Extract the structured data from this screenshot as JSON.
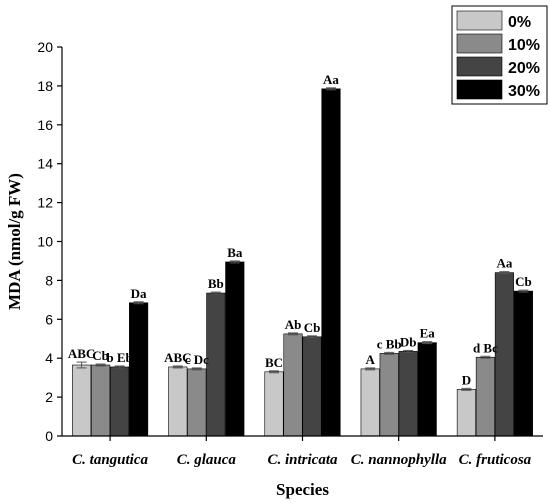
{
  "chart_data": {
    "type": "bar",
    "xlabel": "Species",
    "ylabel": "MDA (nmol/g FW)",
    "ylim": [
      0,
      20
    ],
    "yticks": [
      0,
      2,
      4,
      6,
      8,
      10,
      12,
      14,
      16,
      18,
      20
    ],
    "grid": false,
    "legend_position": "top-right",
    "categories": [
      "C. tangutica",
      "C. glauca",
      "C. intricata",
      "C. nannophylla",
      "C. fruticosa"
    ],
    "series": [
      {
        "name": "0%",
        "color": "#c8c8c8",
        "values": [
          3.65,
          3.55,
          3.3,
          3.45,
          2.4
        ],
        "errors": [
          0.15,
          0.05,
          0.05,
          0.05,
          0.05
        ],
        "labels": [
          "ABC",
          "ABC",
          "BC",
          "A",
          "D"
        ]
      },
      {
        "name": "10%",
        "color": "#8a8a8a",
        "values": [
          3.65,
          3.45,
          5.25,
          4.25,
          4.05
        ],
        "errors": [
          0.05,
          0.05,
          0.05,
          0.05,
          0.05
        ],
        "labels": [
          "Cb",
          "c Dc",
          "Ab",
          "c Bb",
          "d Bc"
        ]
      },
      {
        "name": "20%",
        "color": "#444444",
        "values": [
          3.55,
          7.35,
          5.1,
          4.35,
          8.4
        ],
        "errors": [
          0.05,
          0.05,
          0.05,
          0.05,
          0.05
        ],
        "labels": [
          "b Eb",
          "Bb",
          "Cb",
          "Db",
          "Aa"
        ]
      },
      {
        "name": "30%",
        "color": "#000000",
        "values": [
          6.85,
          8.95,
          17.85,
          4.8,
          7.45
        ],
        "errors": [
          0.05,
          0.05,
          0.05,
          0.05,
          0.05
        ],
        "labels": [
          "Da",
          "Ba",
          "Aa",
          "Ea",
          "Cb"
        ]
      }
    ]
  }
}
